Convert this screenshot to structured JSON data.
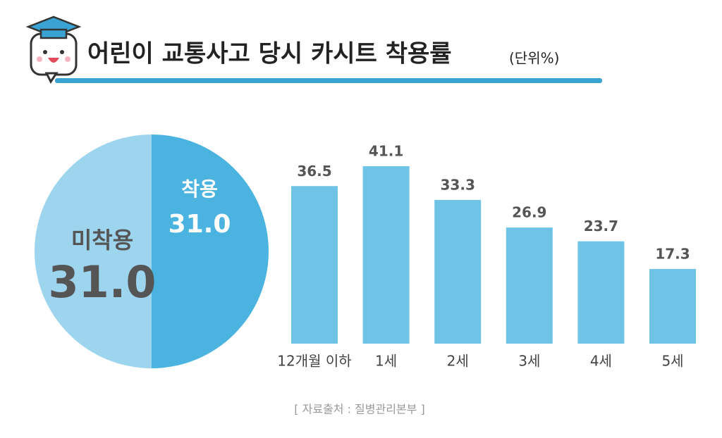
{
  "header": {
    "title": "어린이 교통사고 당시 카시트 착용률",
    "unit": "(단위%)"
  },
  "chart_data": [
    {
      "type": "pie",
      "categories": [
        "착용",
        "미착용"
      ],
      "values": [
        31.0,
        31.0
      ],
      "value_labels": [
        "31.0",
        "31.0"
      ],
      "colors": [
        "#4ab3e0",
        "#9dd5ef"
      ]
    },
    {
      "type": "bar",
      "categories": [
        "12개월 이하",
        "1세",
        "2세",
        "3세",
        "4세",
        "5세"
      ],
      "values": [
        36.5,
        41.1,
        33.3,
        26.9,
        23.7,
        17.3
      ],
      "color": "#6ec3e6"
    }
  ],
  "source": "[ 자료출처 : 질병관리본부 ]"
}
